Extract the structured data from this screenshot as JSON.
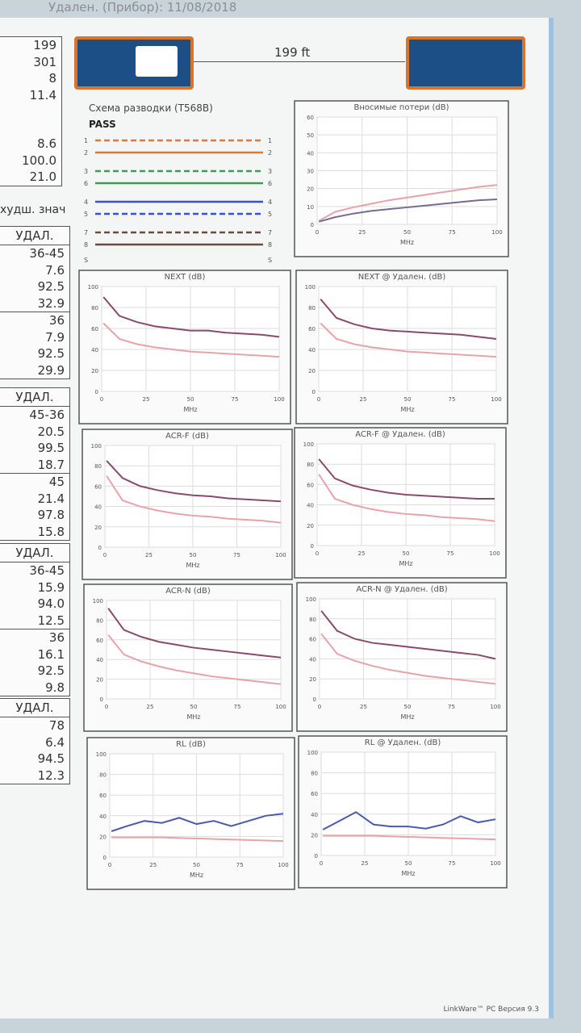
{
  "header": {
    "text": "Удален. (Прибор): 11/08/2018"
  },
  "cable": {
    "length": "199 ft"
  },
  "footer": {
    "text": "LinkWare™ PC Версия 9.3"
  },
  "left_panel": {
    "summary": [
      "199",
      "301",
      "8",
      "11.4",
      "8.6",
      "100.0",
      "21.0"
    ],
    "worst_label": "худш. знач",
    "tables": [
      {
        "header": "УДАЛ.",
        "rows": [
          "36-45",
          "7.6",
          "92.5",
          "32.9",
          "36",
          "7.9",
          "92.5",
          "29.9"
        ]
      },
      {
        "header": "УДАЛ.",
        "rows": [
          "45-36",
          "20.5",
          "99.5",
          "18.7",
          "45",
          "21.4",
          "97.8",
          "15.8"
        ]
      },
      {
        "header": "УДАЛ.",
        "rows": [
          "36-45",
          "15.9",
          "94.0",
          "12.5",
          "36",
          "16.1",
          "92.5",
          "9.8"
        ]
      },
      {
        "header": "УДАЛ.",
        "rows": [
          "78",
          "6.4",
          "94.5",
          "12.3"
        ]
      }
    ]
  },
  "wiremap": {
    "title": "Схема разводки (T568B)",
    "result": "PASS",
    "pins": [
      "1",
      "2",
      "3",
      "6",
      "4",
      "5",
      "7",
      "8",
      "S"
    ]
  },
  "chart_data": [
    {
      "type": "line",
      "title": "Вносимые потери (dB)",
      "xlabel": "MHz",
      "x": [
        1,
        10,
        20,
        30,
        40,
        50,
        60,
        70,
        80,
        90,
        100
      ],
      "xlim": [
        0,
        100
      ],
      "xticks": [
        0,
        25,
        50,
        75,
        100
      ],
      "ylim": [
        0,
        60
      ],
      "yticks": [
        0,
        10,
        20,
        30,
        40,
        50,
        60
      ],
      "grid": true,
      "series": [
        {
          "color": "#e8a3a8",
          "values": [
            2,
            7,
            9.5,
            11.5,
            13.5,
            15,
            16.5,
            18,
            19.5,
            21,
            22
          ]
        },
        {
          "color": "#7a6a90",
          "values": [
            1.5,
            4,
            6,
            7.5,
            8.5,
            9.5,
            10.5,
            11.5,
            12.5,
            13.5,
            14
          ]
        }
      ]
    },
    {
      "type": "line",
      "title": "NEXT (dB)",
      "xlabel": "MHz",
      "x": [
        1,
        10,
        20,
        30,
        40,
        50,
        60,
        70,
        80,
        90,
        100
      ],
      "xlim": [
        0,
        100
      ],
      "xticks": [
        0,
        25,
        50,
        75,
        100
      ],
      "ylim": [
        0,
        100
      ],
      "yticks": [
        0,
        20,
        40,
        60,
        80,
        100
      ],
      "grid": true,
      "series": [
        {
          "color": "#e8a3a8",
          "values": [
            65,
            50,
            45,
            42,
            40,
            38,
            37,
            36,
            35,
            34,
            33
          ]
        },
        {
          "color": "#8a4a6e",
          "values": [
            90,
            72,
            66,
            62,
            60,
            58,
            58,
            56,
            55,
            54,
            52
          ]
        }
      ]
    },
    {
      "type": "line",
      "title": "NEXT @ Удален. (dB)",
      "xlabel": "MHz",
      "x": [
        1,
        10,
        20,
        30,
        40,
        50,
        60,
        70,
        80,
        90,
        100
      ],
      "xlim": [
        0,
        100
      ],
      "xticks": [
        0,
        25,
        50,
        75,
        100
      ],
      "ylim": [
        0,
        100
      ],
      "yticks": [
        0,
        20,
        40,
        60,
        80,
        100
      ],
      "grid": true,
      "series": [
        {
          "color": "#e8a3a8",
          "values": [
            65,
            50,
            45,
            42,
            40,
            38,
            37,
            36,
            35,
            34,
            33
          ]
        },
        {
          "color": "#8a4a6e",
          "values": [
            88,
            70,
            64,
            60,
            58,
            57,
            56,
            55,
            54,
            52,
            50
          ]
        }
      ]
    },
    {
      "type": "line",
      "title": "ACR-F (dB)",
      "xlabel": "MHz",
      "x": [
        1,
        10,
        20,
        30,
        40,
        50,
        60,
        70,
        80,
        90,
        100
      ],
      "xlim": [
        0,
        100
      ],
      "xticks": [
        0,
        25,
        50,
        75,
        100
      ],
      "ylim": [
        0,
        100
      ],
      "yticks": [
        0,
        20,
        40,
        60,
        80,
        100
      ],
      "grid": true,
      "series": [
        {
          "color": "#e8a3a8",
          "values": [
            70,
            46,
            40,
            36,
            33,
            31,
            30,
            28,
            27,
            26,
            24
          ]
        },
        {
          "color": "#8a4a6e",
          "values": [
            85,
            68,
            60,
            56,
            53,
            51,
            50,
            48,
            47,
            46,
            45
          ]
        }
      ]
    },
    {
      "type": "line",
      "title": "ACR-F @ Удален. (dB)",
      "xlabel": "MHz",
      "x": [
        1,
        10,
        20,
        30,
        40,
        50,
        60,
        70,
        80,
        90,
        100
      ],
      "xlim": [
        0,
        100
      ],
      "xticks": [
        0,
        25,
        50,
        75,
        100
      ],
      "ylim": [
        0,
        100
      ],
      "yticks": [
        0,
        20,
        40,
        60,
        80,
        100
      ],
      "grid": true,
      "series": [
        {
          "color": "#e8a3a8",
          "values": [
            70,
            46,
            40,
            36,
            33,
            31,
            30,
            28,
            27,
            26,
            24
          ]
        },
        {
          "color": "#8a4a6e",
          "values": [
            85,
            66,
            59,
            55,
            52,
            50,
            49,
            48,
            47,
            46,
            46
          ]
        }
      ]
    },
    {
      "type": "line",
      "title": "ACR-N (dB)",
      "xlabel": "MHz",
      "x": [
        1,
        10,
        20,
        30,
        40,
        50,
        60,
        70,
        80,
        90,
        100
      ],
      "xlim": [
        0,
        100
      ],
      "xticks": [
        0,
        25,
        50,
        75,
        100
      ],
      "ylim": [
        0,
        100
      ],
      "yticks": [
        0,
        20,
        40,
        60,
        80,
        100
      ],
      "grid": true,
      "series": [
        {
          "color": "#e8a3a8",
          "values": [
            65,
            45,
            38,
            33,
            29,
            26,
            23,
            21,
            19,
            17,
            15
          ]
        },
        {
          "color": "#8a4a6e",
          "values": [
            92,
            70,
            63,
            58,
            55,
            52,
            50,
            48,
            46,
            44,
            42
          ]
        }
      ]
    },
    {
      "type": "line",
      "title": "ACR-N @ Удален. (dB)",
      "xlabel": "MHz",
      "x": [
        1,
        10,
        20,
        30,
        40,
        50,
        60,
        70,
        80,
        90,
        100
      ],
      "xlim": [
        0,
        100
      ],
      "xticks": [
        0,
        25,
        50,
        75,
        100
      ],
      "ylim": [
        0,
        100
      ],
      "yticks": [
        0,
        20,
        40,
        60,
        80,
        100
      ],
      "grid": true,
      "series": [
        {
          "color": "#e8a3a8",
          "values": [
            65,
            45,
            38,
            33,
            29,
            26,
            23,
            21,
            19,
            17,
            15
          ]
        },
        {
          "color": "#8a4a6e",
          "values": [
            88,
            68,
            60,
            56,
            54,
            52,
            50,
            48,
            46,
            44,
            40
          ]
        }
      ]
    },
    {
      "type": "line",
      "title": "RL (dB)",
      "xlabel": "MHz",
      "x": [
        1,
        10,
        20,
        30,
        40,
        50,
        60,
        70,
        80,
        90,
        100
      ],
      "xlim": [
        0,
        100
      ],
      "xticks": [
        0,
        25,
        50,
        75,
        100
      ],
      "ylim": [
        0,
        100
      ],
      "yticks": [
        0,
        20,
        40,
        60,
        80,
        100
      ],
      "grid": true,
      "series": [
        {
          "color": "#e8a3a8",
          "values": [
            19,
            19,
            19,
            19,
            18.5,
            18,
            17.5,
            17,
            16.5,
            16,
            15.5
          ]
        },
        {
          "color": "#4a5ab0",
          "values": [
            25,
            30,
            35,
            33,
            38,
            32,
            35,
            30,
            35,
            40,
            42
          ]
        }
      ]
    },
    {
      "type": "line",
      "title": "RL @ Удален. (dB)",
      "xlabel": "MHz",
      "x": [
        1,
        10,
        20,
        30,
        40,
        50,
        60,
        70,
        80,
        90,
        100
      ],
      "xlim": [
        0,
        100
      ],
      "xticks": [
        0,
        25,
        50,
        75,
        100
      ],
      "ylim": [
        0,
        100
      ],
      "yticks": [
        0,
        20,
        40,
        60,
        80,
        100
      ],
      "grid": true,
      "series": [
        {
          "color": "#e8a3a8",
          "values": [
            19,
            19,
            19,
            19,
            18.5,
            18,
            17.5,
            17,
            16.5,
            16,
            15.5
          ]
        },
        {
          "color": "#4a5ab0",
          "values": [
            25,
            33,
            42,
            30,
            28,
            28,
            26,
            30,
            38,
            32,
            35
          ]
        }
      ]
    }
  ]
}
